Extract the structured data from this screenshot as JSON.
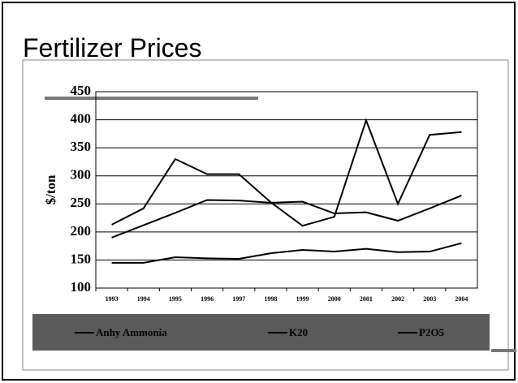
{
  "chart_data": {
    "type": "line",
    "title": "Fertilizer Prices",
    "y_label": "$/ton",
    "categories": [
      "1993",
      "1994",
      "1995",
      "1996",
      "1997",
      "1998",
      "1999",
      "2000",
      "2001",
      "2002",
      "2003",
      "2004"
    ],
    "series": [
      {
        "name": "Anhy Ammonia",
        "color": "#000000",
        "values": [
          213,
          242,
          330,
          303,
          303,
          253,
          211,
          227,
          399,
          250,
          373,
          378
        ]
      },
      {
        "name": "K20",
        "color": "#000000",
        "values": [
          145,
          145,
          155,
          153,
          152,
          162,
          168,
          165,
          170,
          164,
          165,
          180
        ]
      },
      {
        "name": "P2O5",
        "color": "#000000",
        "values": [
          190,
          212,
          234,
          257,
          256,
          252,
          254,
          233,
          235,
          220,
          242,
          265
        ]
      }
    ],
    "ylim": [
      100,
      450
    ],
    "yticks": [
      100,
      150,
      200,
      250,
      300,
      350,
      400,
      450
    ],
    "grid": true,
    "legend": "bottom"
  }
}
